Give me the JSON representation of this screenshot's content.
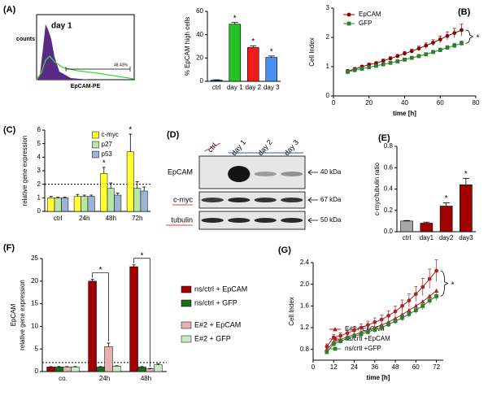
{
  "chart_data": [
    {
      "type": "flow",
      "label": "(A)",
      "annotation": "day 1",
      "ylabel": "counts",
      "xlabel": "EpCAM-PE",
      "gate_label": "48.43%"
    },
    {
      "type": "bar",
      "ylabel": "% EpCAM high cells",
      "categories": [
        "ctrl",
        "day 1",
        "day 2",
        "day 3"
      ],
      "values": [
        1,
        49,
        29,
        20.5
      ],
      "errors": [
        0.3,
        1.5,
        1.5,
        1.2
      ],
      "colors": [
        "#1f3fbf",
        "#22c322",
        "#ee1c1c",
        "#4a8ef0"
      ],
      "significance": [
        null,
        "*",
        "*",
        "*"
      ],
      "ylim": [
        0,
        60
      ],
      "yticks": [
        0,
        20,
        40,
        60
      ]
    },
    {
      "type": "line",
      "label": "(B)",
      "xlabel": "time [h]",
      "ylabel": "Cell Index",
      "annotation": "*",
      "legend": "upper-left",
      "x": [
        8,
        12,
        16,
        20,
        24,
        28,
        32,
        36,
        40,
        44,
        48,
        52,
        56,
        60,
        64,
        68,
        72
      ],
      "series": [
        {
          "name": "EpCAM",
          "color": "#8b0000",
          "marker": "circle",
          "values": [
            0.85,
            0.92,
            1.0,
            1.07,
            1.12,
            1.2,
            1.28,
            1.36,
            1.45,
            1.53,
            1.62,
            1.72,
            1.82,
            1.93,
            2.05,
            2.15,
            2.25
          ],
          "errors": [
            0.05,
            0.05,
            0.05,
            0.05,
            0.05,
            0.06,
            0.06,
            0.06,
            0.07,
            0.07,
            0.08,
            0.09,
            0.1,
            0.12,
            0.14,
            0.16,
            0.2
          ]
        },
        {
          "name": "GFP",
          "color": "#2e7d32",
          "marker": "square",
          "values": [
            0.82,
            0.88,
            0.93,
            0.98,
            1.03,
            1.08,
            1.13,
            1.18,
            1.24,
            1.3,
            1.36,
            1.42,
            1.5,
            1.57,
            1.65,
            1.72,
            1.8
          ],
          "errors": [
            0.05,
            0.05,
            0.05,
            0.05,
            0.05,
            0.05,
            0.05,
            0.05,
            0.05,
            0.05,
            0.06,
            0.06,
            0.06,
            0.07,
            0.07,
            0.08,
            0.08
          ]
        }
      ],
      "xlim": [
        0,
        80
      ],
      "xticks": [
        0,
        20,
        40,
        60,
        80
      ],
      "ylim": [
        0,
        3
      ],
      "yticks": [
        0,
        1,
        2,
        3
      ]
    },
    {
      "type": "grouped_bar",
      "label": "(C)",
      "ylabel": "relative gene expression",
      "legend": "upper-right",
      "reference_line": 2,
      "categories": [
        "ctrl",
        "24h",
        "48h",
        "72h"
      ],
      "series": [
        {
          "name": "c-myc",
          "color": "#ffff33",
          "values": [
            1,
            1.1,
            2.8,
            4.4
          ],
          "errors": [
            0.1,
            0.15,
            0.45,
            1.3
          ],
          "significance": [
            null,
            null,
            "*",
            "*"
          ]
        },
        {
          "name": "p27",
          "color": "#b9e6a6",
          "values": [
            1,
            1.1,
            1.7,
            1.7
          ],
          "errors": [
            0.05,
            0.1,
            0.4,
            0.5
          ]
        },
        {
          "name": "p53",
          "color": "#9db4d6",
          "values": [
            1,
            1.1,
            1.2,
            1.5
          ],
          "errors": [
            0.05,
            0.1,
            0.15,
            0.3
          ]
        }
      ],
      "ylim": [
        0,
        6
      ],
      "yticks": [
        0,
        1,
        2,
        3,
        4,
        5,
        6
      ]
    },
    {
      "type": "blot",
      "label": "(D)",
      "lanes": [
        "ctrl",
        "day 1",
        "day 2",
        "day 3"
      ],
      "rows": [
        {
          "name": "EpCAM",
          "size": "40 kDa"
        },
        {
          "name": "c-myc",
          "size": "67 kDa"
        },
        {
          "name": "tubulin",
          "size": "50 kDa"
        }
      ]
    },
    {
      "type": "bar",
      "label": "(E)",
      "ylabel": "c-myc/tubulin ratio",
      "categories": [
        "ctrl",
        "day1",
        "day2",
        "day3"
      ],
      "values": [
        0.1,
        0.08,
        0.24,
        0.44
      ],
      "errors": [
        0.005,
        0.01,
        0.03,
        0.06
      ],
      "colors": [
        "#a6a6a6",
        "#a00000",
        "#a00000",
        "#a00000"
      ],
      "significance": [
        null,
        null,
        "*",
        "*"
      ],
      "ylim": [
        0,
        0.8
      ],
      "yticks": [
        {
          "value": 0,
          "label": "0.0"
        },
        0.2,
        0.4,
        0.6,
        0.8
      ]
    },
    {
      "type": "grouped_bar",
      "label": "(F)",
      "ylabel": [
        "EpCAM",
        "relative gene expression"
      ],
      "legend": "right",
      "reference_line": 2,
      "brackets": true,
      "categories": [
        "co.",
        "24h",
        "48h"
      ],
      "series": [
        {
          "name": "ns/ctrl + EpCAM",
          "color": "#a00000",
          "values": [
            1,
            20,
            23.2
          ],
          "errors": [
            0.1,
            0.4,
            0.4
          ],
          "significance": [
            null,
            "*",
            "*"
          ]
        },
        {
          "name": "ns/ctrl + GFP",
          "color": "#1a6e1a",
          "values": [
            1,
            1,
            1
          ],
          "errors": [
            0.1,
            0.1,
            0.1
          ]
        },
        {
          "name": "E#2 + EpCAM",
          "color": "#e6b0b0",
          "values": [
            1,
            5.5,
            0.6
          ],
          "errors": [
            0.1,
            0.8,
            0.1
          ]
        },
        {
          "name": "E#2 + GFP",
          "color": "#c6ecc6",
          "values": [
            1,
            1.2,
            1.5
          ],
          "errors": [
            0.1,
            0.1,
            0.2
          ]
        }
      ],
      "ylim": [
        0,
        25
      ],
      "yticks": [
        0,
        5,
        10,
        15,
        20,
        25
      ]
    },
    {
      "type": "line",
      "label": "(G)",
      "xlabel": "time [h]",
      "ylabel": "Cell Index",
      "annotation": "*",
      "legend": "lower-right",
      "x": [
        8,
        12,
        16,
        20,
        24,
        28,
        32,
        36,
        40,
        44,
        48,
        52,
        56,
        60,
        64,
        68,
        72
      ],
      "series": [
        {
          "name": "E#2+ EpCAM",
          "color": "#b22222",
          "marker": "triangle",
          "values": [
            0.8,
            0.93,
            0.98,
            1.03,
            1.07,
            1.11,
            1.15,
            1.2,
            1.25,
            1.3,
            1.37,
            1.44,
            1.52,
            1.6,
            1.68,
            1.78,
            1.88
          ]
        },
        {
          "name": "ns/crtl +EpCAM",
          "color": "#b22222",
          "marker": "circle",
          "values": [
            0.85,
            1.02,
            1.05,
            1.1,
            1.15,
            1.2,
            1.25,
            1.3,
            1.35,
            1.42,
            1.5,
            1.6,
            1.7,
            1.82,
            1.95,
            2.1,
            2.25
          ],
          "errors": [
            0.05,
            0.05,
            0.05,
            0.06,
            0.06,
            0.07,
            0.07,
            0.08,
            0.08,
            0.09,
            0.1,
            0.11,
            0.12,
            0.14,
            0.16,
            0.18,
            0.2
          ]
        },
        {
          "name": "ns/crtl +GFP",
          "color": "#2e7d32",
          "marker": "square",
          "values": [
            0.75,
            0.9,
            0.95,
            1.0,
            1.04,
            1.08,
            1.12,
            1.16,
            1.2,
            1.26,
            1.32,
            1.38,
            1.45,
            1.52,
            1.6,
            1.7,
            1.78
          ],
          "errors": [
            0.04,
            0.04,
            0.04,
            0.04,
            0.04,
            0.05,
            0.05,
            0.05,
            0.05,
            0.05,
            0.05,
            0.06,
            0.06,
            0.06,
            0.07,
            0.07,
            0.08
          ]
        }
      ],
      "xlim": [
        0,
        76
      ],
      "xticks": [
        0,
        12,
        24,
        36,
        48,
        60,
        72
      ],
      "ylim": [
        0.6,
        2.4
      ],
      "yticks": [
        0.8,
        1.2,
        1.6,
        {
          "value": 2,
          "label": "2.0"
        },
        2.4
      ]
    }
  ]
}
